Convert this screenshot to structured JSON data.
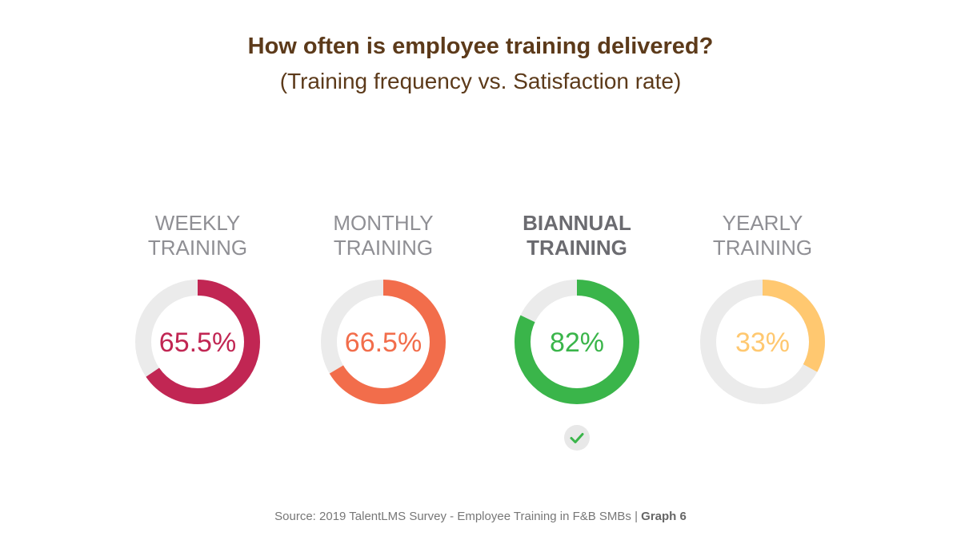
{
  "chart_data": {
    "type": "donut",
    "title": "How often is employee training delivered?",
    "subtitle": "(Training frequency vs. Satisfaction rate)",
    "series": [
      {
        "label_line1": "WEEKLY",
        "label_line2": "TRAINING",
        "value": 65.5,
        "display": "65.5%",
        "color": "#c12653",
        "highlight": false
      },
      {
        "label_line1": "MONTHLY",
        "label_line2": "TRAINING",
        "value": 66.5,
        "display": "66.5%",
        "color": "#f26d4b",
        "highlight": false
      },
      {
        "label_line1": "BIANNUAL",
        "label_line2": "TRAINING",
        "value": 82,
        "display": "82%",
        "color": "#3ab54a",
        "highlight": true
      },
      {
        "label_line1": "YEARLY",
        "label_line2": "TRAINING",
        "value": 33,
        "display": "33%",
        "color": "#ffc870",
        "highlight": false
      }
    ],
    "track_color": "#ebebeb",
    "marker_icon": "check-icon"
  },
  "source": {
    "text": "Source: 2019 TalentLMS Survey - Employee Training in F&B SMBs | ",
    "graph": "Graph 6"
  }
}
